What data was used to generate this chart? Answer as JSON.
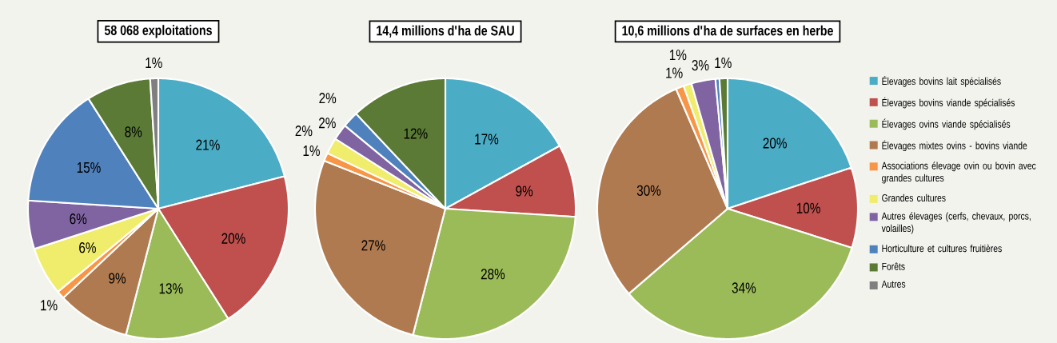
{
  "chart_data": [
    {
      "type": "pie",
      "title": "58 068 exploitations",
      "categories": [
        null,
        null,
        null,
        null,
        null,
        null,
        null,
        null,
        null,
        null
      ],
      "values": [
        21,
        20,
        13,
        9,
        1,
        6,
        6,
        15,
        8,
        1
      ],
      "value_labels": [
        "21%",
        "20%",
        "13%",
        "9%",
        "1%",
        "6%",
        "6%",
        "15%",
        "8%",
        "1%"
      ],
      "colors": [
        "#4bacc6",
        "#c0504d",
        "#9bbb59",
        "#b07a50",
        "#f79646",
        "#f0ec6c",
        "#8064a2",
        "#4f81bd",
        "#5a7a35",
        "#7f7f7f"
      ]
    },
    {
      "type": "pie",
      "title": "14,4 millions d'ha de SAU",
      "categories": [
        null,
        null,
        null,
        null,
        null,
        null,
        null,
        null,
        null,
        null
      ],
      "values": [
        17,
        9,
        28,
        27,
        1,
        2,
        2,
        2,
        12,
        0
      ],
      "value_labels": [
        "17%",
        "9%",
        "28%",
        "27%",
        "1%",
        "2%",
        "2%",
        "2%",
        "12%",
        null
      ],
      "colors": [
        "#4bacc6",
        "#c0504d",
        "#9bbb59",
        "#b07a50",
        "#f79646",
        "#f0ec6c",
        "#8064a2",
        "#4f81bd",
        "#5a7a35",
        "#7f7f7f"
      ]
    },
    {
      "type": "pie",
      "title": "10,6 millions d'ha de surfaces en herbe",
      "legend": "right",
      "categories": [
        "Élevages bovins lait spécialisés",
        "Élevages bovins viande spécialisés",
        "Élevages ovins viande spécialisés",
        "Élevages mixtes ovins - bovins viande",
        "Associations élevage ovin ou bovin avec grandes cultures",
        "Grandes cultures",
        "Autres élevages (cerfs, chevaux, porcs, volailles)",
        "Horticulture et cultures fruitières",
        "Forêts",
        "Autres"
      ],
      "values": [
        20,
        10,
        34,
        30,
        1,
        1,
        3,
        0.5,
        1,
        0
      ],
      "value_labels": [
        "20%",
        "10%",
        "34%",
        "30%",
        "1%",
        "1%",
        "3%",
        null,
        "1%",
        null
      ],
      "colors": [
        "#4bacc6",
        "#c0504d",
        "#9bbb59",
        "#b07a50",
        "#f79646",
        "#f0ec6c",
        "#8064a2",
        "#4f81bd",
        "#5a7a35",
        "#7f7f7f"
      ]
    }
  ]
}
